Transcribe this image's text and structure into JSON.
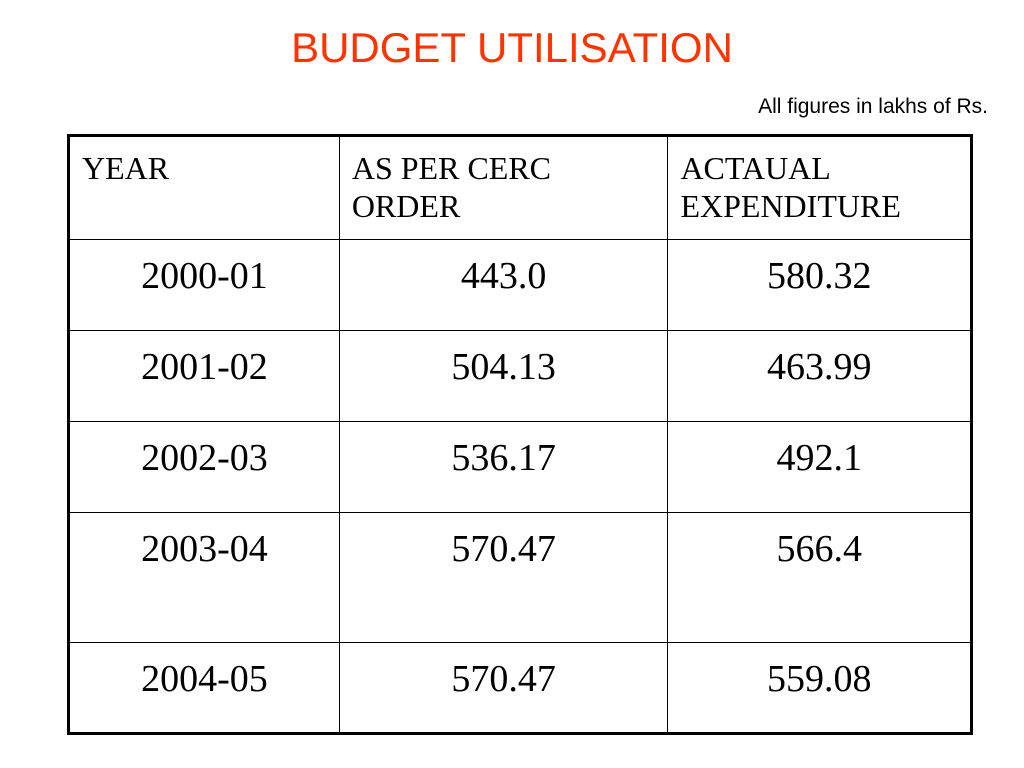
{
  "title": "BUDGET UTILISATION",
  "note": "All figures in lakhs of Rs.",
  "table": {
    "headers": [
      "YEAR",
      "AS PER CERC ORDER",
      "ACTAUAL EXPENDITURE"
    ],
    "rows": [
      [
        "2000-01",
        "443.0",
        "580.32"
      ],
      [
        "2001-02",
        "504.13",
        "463.99"
      ],
      [
        "2002-03",
        "536.17",
        "492.1"
      ],
      [
        "2003-04",
        "570.47",
        "566.4"
      ],
      [
        "2004-05",
        "570.47",
        "559.08"
      ]
    ]
  }
}
